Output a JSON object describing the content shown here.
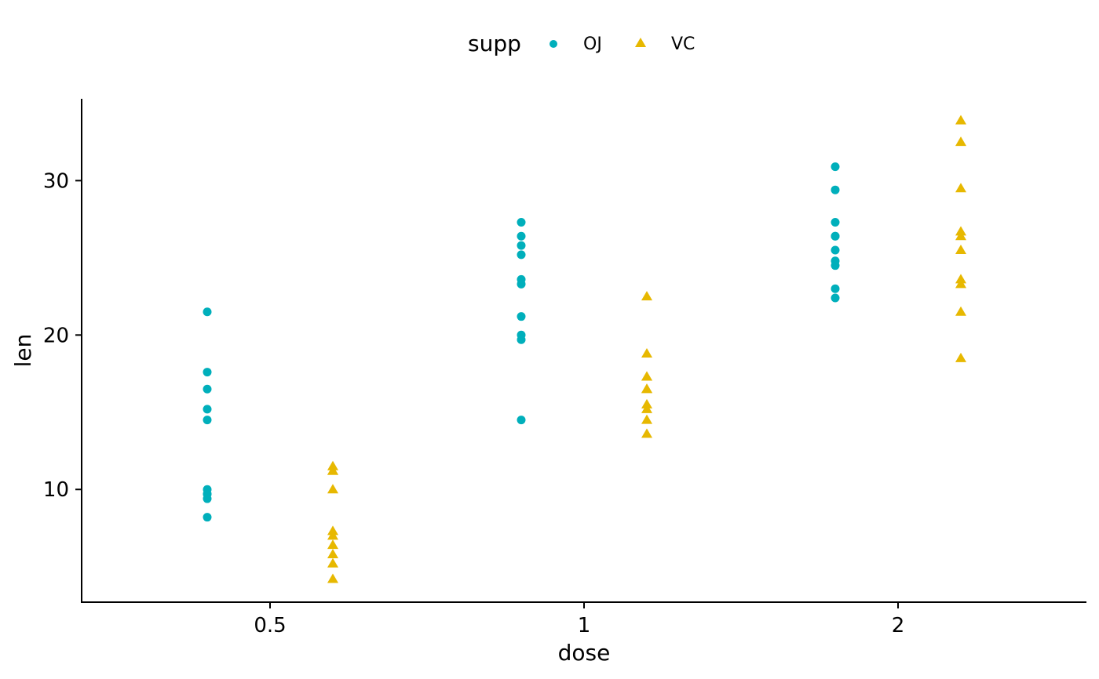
{
  "chart_data": {
    "type": "scatter",
    "xlabel": "dose",
    "ylabel": "len",
    "x_categories": [
      "0.5",
      "1",
      "2"
    ],
    "y_ticks": [
      10,
      20,
      30
    ],
    "ylim": [
      2.7,
      35.3
    ],
    "grid": false,
    "legend": {
      "title": "supp",
      "placement": "top"
    },
    "series": [
      {
        "name": "OJ",
        "shape": "circle",
        "color": "#00AFBB",
        "points": {
          "0.5": [
            15.2,
            21.5,
            17.6,
            9.7,
            14.5,
            10.0,
            8.2,
            9.4,
            16.5,
            9.7
          ],
          "1": [
            19.7,
            23.3,
            23.6,
            26.4,
            20.0,
            25.2,
            25.8,
            21.2,
            14.5,
            27.3
          ],
          "2": [
            25.5,
            26.4,
            22.4,
            24.5,
            24.8,
            30.9,
            26.4,
            27.3,
            29.4,
            23.0
          ]
        }
      },
      {
        "name": "VC",
        "shape": "triangle",
        "color": "#E7B800",
        "points": {
          "0.5": [
            4.2,
            11.5,
            7.3,
            5.8,
            6.4,
            10.0,
            11.2,
            11.2,
            5.2,
            7.0
          ],
          "1": [
            16.5,
            16.5,
            15.2,
            17.3,
            22.5,
            17.3,
            13.6,
            14.5,
            18.8,
            15.5
          ],
          "2": [
            23.6,
            18.5,
            33.9,
            25.5,
            26.4,
            32.5,
            26.7,
            21.5,
            23.3,
            29.5
          ]
        }
      }
    ]
  }
}
